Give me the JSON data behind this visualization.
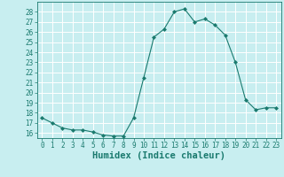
{
  "x": [
    0,
    1,
    2,
    3,
    4,
    5,
    6,
    7,
    8,
    9,
    10,
    11,
    12,
    13,
    14,
    15,
    16,
    17,
    18,
    19,
    20,
    21,
    22,
    23
  ],
  "y": [
    17.5,
    17.0,
    16.5,
    16.3,
    16.3,
    16.1,
    15.8,
    15.7,
    15.7,
    17.5,
    21.5,
    25.5,
    26.3,
    28.0,
    28.3,
    27.0,
    27.3,
    26.7,
    25.7,
    23.0,
    19.3,
    18.3,
    18.5,
    18.5
  ],
  "line_color": "#1a7a6e",
  "marker": "D",
  "markersize": 2.0,
  "bg_color": "#c8eef0",
  "grid_color": "#ffffff",
  "xlabel": "Humidex (Indice chaleur)",
  "ylim": [
    15.5,
    29
  ],
  "xlim": [
    -0.5,
    23.5
  ],
  "yticks": [
    16,
    17,
    18,
    19,
    20,
    21,
    22,
    23,
    24,
    25,
    26,
    27,
    28
  ],
  "xticks": [
    0,
    1,
    2,
    3,
    4,
    5,
    6,
    7,
    8,
    9,
    10,
    11,
    12,
    13,
    14,
    15,
    16,
    17,
    18,
    19,
    20,
    21,
    22,
    23
  ],
  "font_color": "#1a7a6e",
  "tick_fontsize": 5.5,
  "xlabel_fontsize": 7.5
}
